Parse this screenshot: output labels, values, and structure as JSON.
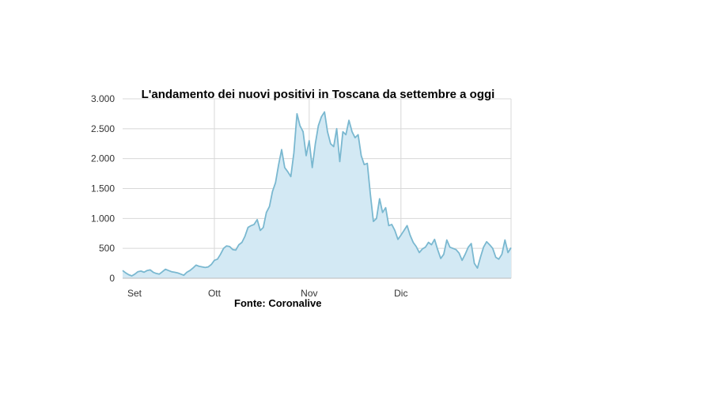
{
  "chart_data": {
    "type": "area",
    "title": "L'andamento dei nuovi positivi in Toscana da settembre a oggi",
    "source": "Fonte: Coronalive",
    "xlabel": "",
    "ylabel": "",
    "x_range": [
      "2020-09-01",
      "2020-12-31"
    ],
    "ylim": [
      0,
      3000
    ],
    "y_ticks": [
      {
        "value": 0,
        "label": "0"
      },
      {
        "value": 500,
        "label": "500"
      },
      {
        "value": 1000,
        "label": "1.000"
      },
      {
        "value": 1500,
        "label": "1.500"
      },
      {
        "value": 2000,
        "label": "2.000"
      },
      {
        "value": 2500,
        "label": "2.500"
      },
      {
        "value": 3000,
        "label": "3.000"
      }
    ],
    "x_ticks": [
      {
        "date": "2020-09-01",
        "label": "Set"
      },
      {
        "date": "2020-10-01",
        "label": "Ott"
      },
      {
        "date": "2020-11-01",
        "label": "Nov"
      },
      {
        "date": "2020-12-01",
        "label": "Dic"
      }
    ],
    "grid": true,
    "colors": {
      "line": "#7ab8d0",
      "fill": "#d3e9f4",
      "grid": "#d8d8d8",
      "axis": "#bbbbbb"
    },
    "series": [
      {
        "values": [
          [
            "2020-09-01",
            130
          ],
          [
            "2020-09-02",
            90
          ],
          [
            "2020-09-03",
            60
          ],
          [
            "2020-09-04",
            40
          ],
          [
            "2020-09-05",
            70
          ],
          [
            "2020-09-06",
            110
          ],
          [
            "2020-09-07",
            120
          ],
          [
            "2020-09-08",
            100
          ],
          [
            "2020-09-09",
            130
          ],
          [
            "2020-09-10",
            140
          ],
          [
            "2020-09-11",
            100
          ],
          [
            "2020-09-12",
            80
          ],
          [
            "2020-09-13",
            70
          ],
          [
            "2020-09-14",
            110
          ],
          [
            "2020-09-15",
            150
          ],
          [
            "2020-09-16",
            130
          ],
          [
            "2020-09-17",
            110
          ],
          [
            "2020-09-18",
            100
          ],
          [
            "2020-09-19",
            90
          ],
          [
            "2020-09-20",
            70
          ],
          [
            "2020-09-21",
            50
          ],
          [
            "2020-09-22",
            100
          ],
          [
            "2020-09-23",
            130
          ],
          [
            "2020-09-24",
            170
          ],
          [
            "2020-09-25",
            220
          ],
          [
            "2020-09-26",
            200
          ],
          [
            "2020-09-27",
            190
          ],
          [
            "2020-09-28",
            180
          ],
          [
            "2020-09-29",
            190
          ],
          [
            "2020-09-30",
            230
          ],
          [
            "2020-10-01",
            300
          ],
          [
            "2020-10-02",
            320
          ],
          [
            "2020-10-03",
            400
          ],
          [
            "2020-10-04",
            500
          ],
          [
            "2020-10-05",
            540
          ],
          [
            "2020-10-06",
            530
          ],
          [
            "2020-10-07",
            480
          ],
          [
            "2020-10-08",
            470
          ],
          [
            "2020-10-09",
            560
          ],
          [
            "2020-10-10",
            600
          ],
          [
            "2020-10-11",
            700
          ],
          [
            "2020-10-12",
            850
          ],
          [
            "2020-10-13",
            880
          ],
          [
            "2020-10-14",
            900
          ],
          [
            "2020-10-15",
            980
          ],
          [
            "2020-10-16",
            800
          ],
          [
            "2020-10-17",
            850
          ],
          [
            "2020-10-18",
            1100
          ],
          [
            "2020-10-19",
            1200
          ],
          [
            "2020-10-20",
            1450
          ],
          [
            "2020-10-21",
            1600
          ],
          [
            "2020-10-22",
            1900
          ],
          [
            "2020-10-23",
            2150
          ],
          [
            "2020-10-24",
            1850
          ],
          [
            "2020-10-25",
            1780
          ],
          [
            "2020-10-26",
            1700
          ],
          [
            "2020-10-27",
            2100
          ],
          [
            "2020-10-28",
            2750
          ],
          [
            "2020-10-29",
            2550
          ],
          [
            "2020-10-30",
            2450
          ],
          [
            "2020-10-31",
            2050
          ],
          [
            "2020-11-01",
            2300
          ],
          [
            "2020-11-02",
            1850
          ],
          [
            "2020-11-03",
            2250
          ],
          [
            "2020-11-04",
            2550
          ],
          [
            "2020-11-05",
            2700
          ],
          [
            "2020-11-06",
            2780
          ],
          [
            "2020-11-07",
            2450
          ],
          [
            "2020-11-08",
            2250
          ],
          [
            "2020-11-09",
            2200
          ],
          [
            "2020-11-10",
            2500
          ],
          [
            "2020-11-11",
            1950
          ],
          [
            "2020-11-12",
            2450
          ],
          [
            "2020-11-13",
            2400
          ],
          [
            "2020-11-14",
            2640
          ],
          [
            "2020-11-15",
            2450
          ],
          [
            "2020-11-16",
            2350
          ],
          [
            "2020-11-17",
            2400
          ],
          [
            "2020-11-18",
            2050
          ],
          [
            "2020-11-19",
            1900
          ],
          [
            "2020-11-20",
            1920
          ],
          [
            "2020-11-21",
            1400
          ],
          [
            "2020-11-22",
            950
          ],
          [
            "2020-11-23",
            1000
          ],
          [
            "2020-11-24",
            1330
          ],
          [
            "2020-11-25",
            1100
          ],
          [
            "2020-11-26",
            1180
          ],
          [
            "2020-11-27",
            880
          ],
          [
            "2020-11-28",
            900
          ],
          [
            "2020-11-29",
            800
          ],
          [
            "2020-11-30",
            650
          ],
          [
            "2020-12-01",
            720
          ],
          [
            "2020-12-02",
            800
          ],
          [
            "2020-12-03",
            880
          ],
          [
            "2020-12-04",
            720
          ],
          [
            "2020-12-05",
            600
          ],
          [
            "2020-12-06",
            530
          ],
          [
            "2020-12-07",
            430
          ],
          [
            "2020-12-08",
            490
          ],
          [
            "2020-12-09",
            520
          ],
          [
            "2020-12-10",
            600
          ],
          [
            "2020-12-11",
            560
          ],
          [
            "2020-12-12",
            650
          ],
          [
            "2020-12-13",
            480
          ],
          [
            "2020-12-14",
            330
          ],
          [
            "2020-12-15",
            400
          ],
          [
            "2020-12-16",
            640
          ],
          [
            "2020-12-17",
            520
          ],
          [
            "2020-12-18",
            500
          ],
          [
            "2020-12-19",
            480
          ],
          [
            "2020-12-20",
            420
          ],
          [
            "2020-12-21",
            300
          ],
          [
            "2020-12-22",
            400
          ],
          [
            "2020-12-23",
            520
          ],
          [
            "2020-12-24",
            580
          ],
          [
            "2020-12-25",
            250
          ],
          [
            "2020-12-26",
            170
          ],
          [
            "2020-12-27",
            350
          ],
          [
            "2020-12-28",
            520
          ],
          [
            "2020-12-29",
            610
          ],
          [
            "2020-12-30",
            560
          ],
          [
            "2020-12-31",
            500
          ],
          [
            "2021-01-01",
            350
          ],
          [
            "2021-01-02",
            320
          ],
          [
            "2021-01-03",
            400
          ],
          [
            "2021-01-04",
            640
          ],
          [
            "2021-01-05",
            430
          ],
          [
            "2021-01-06",
            510
          ]
        ]
      }
    ]
  }
}
